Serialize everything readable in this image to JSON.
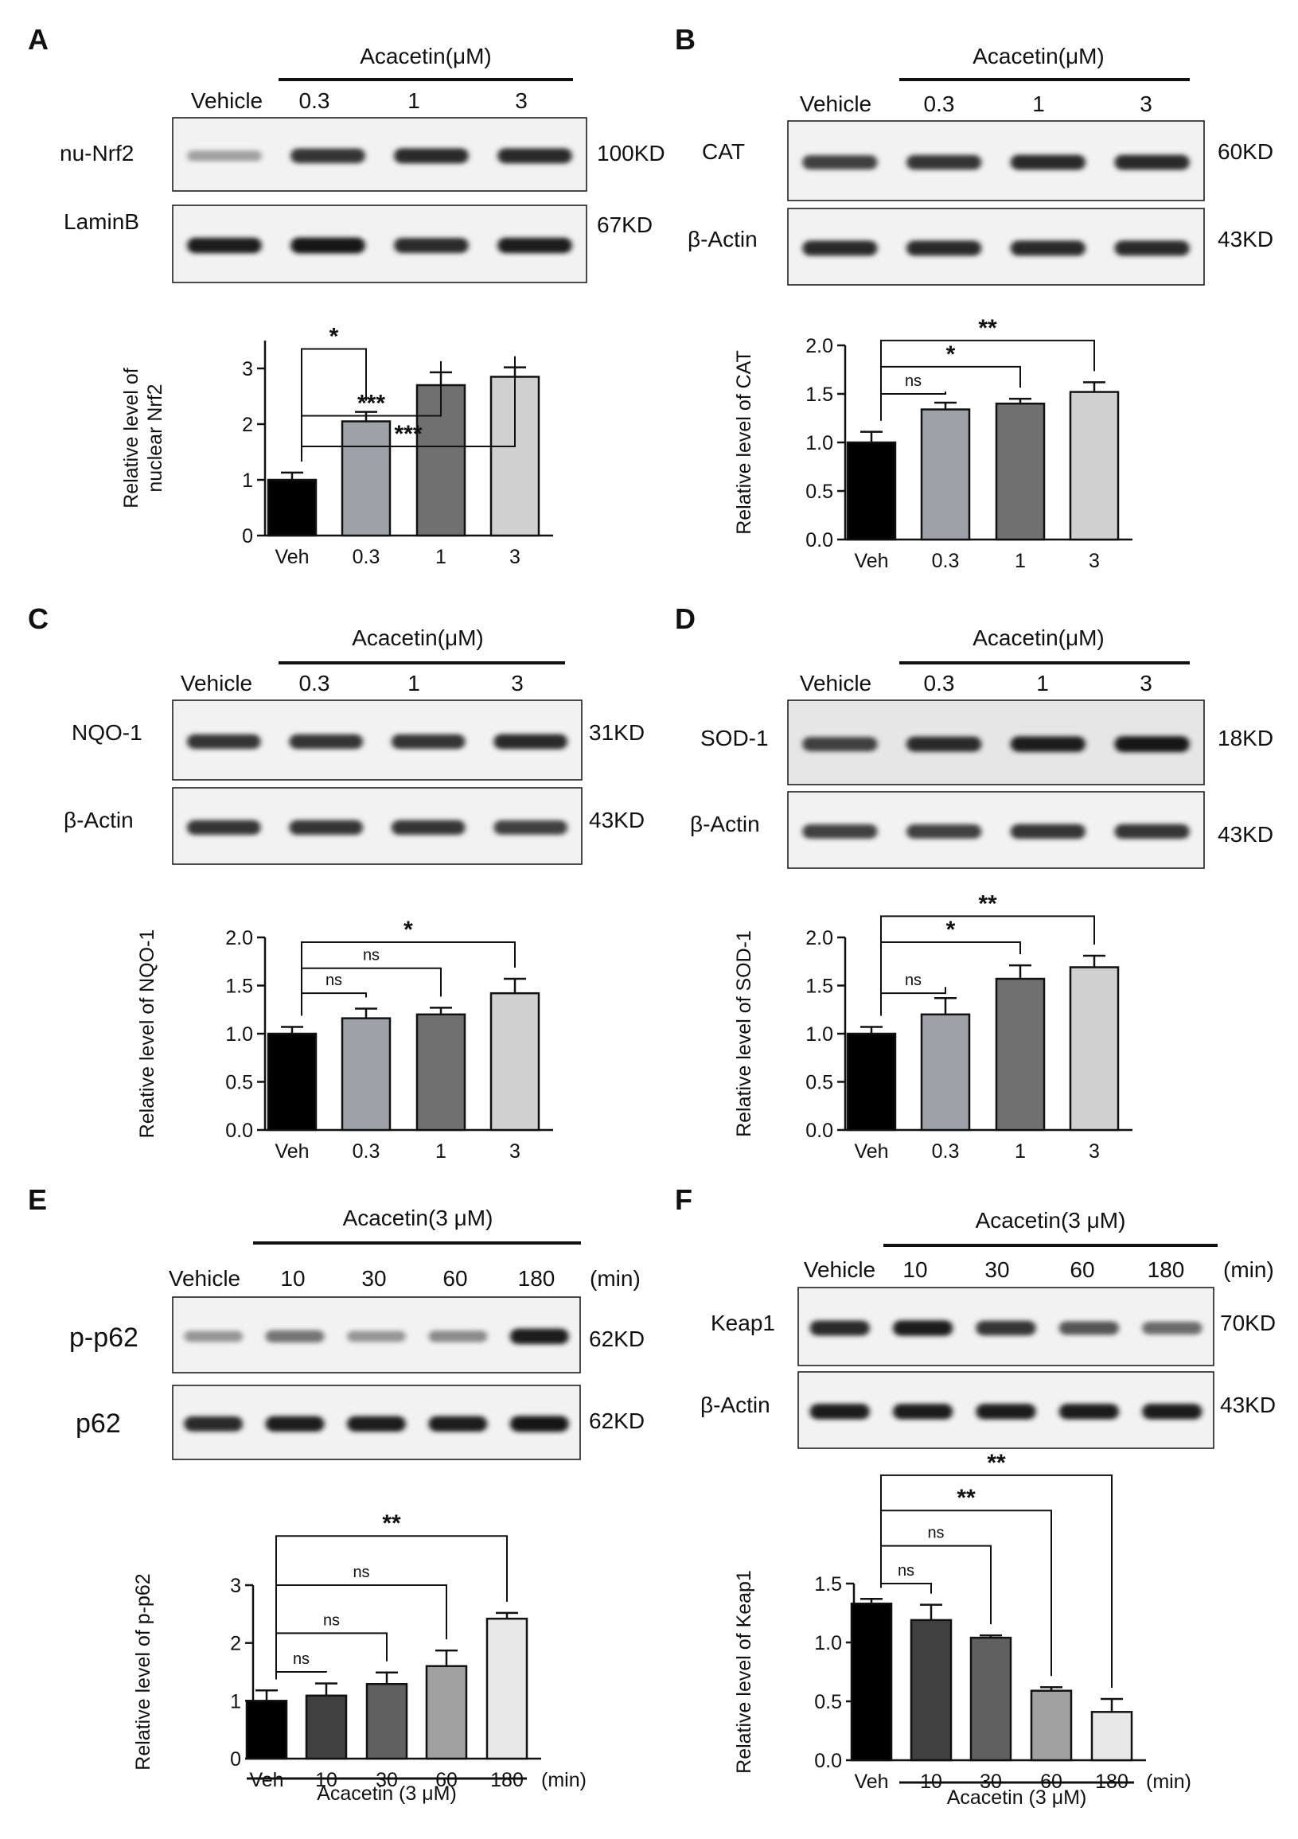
{
  "panels": [
    {
      "letter": "A",
      "blot": {
        "treatment": "Acacetin(μM)",
        "lanes": [
          "Vehicle",
          "0.3",
          "1",
          "3"
        ],
        "rows": [
          {
            "protein": "nu-Nrf2",
            "kd": "100KD",
            "intensity": [
              0.35,
              0.85,
              0.9,
              0.9
            ]
          },
          {
            "protein": "LaminB",
            "kd": "67KD",
            "intensity": [
              0.95,
              1.0,
              0.9,
              0.95
            ]
          }
        ]
      },
      "chart_data": {
        "type": "bar",
        "categories": [
          "Veh",
          "0.3",
          "1",
          "3"
        ],
        "values": [
          1.0,
          2.05,
          2.7,
          2.85
        ],
        "errors": [
          0.13,
          0.17,
          0.23,
          0.17
        ],
        "bar_colors": [
          "#000000",
          "#a0a0a8",
          "#707070",
          "#d0d0d0"
        ],
        "ylabel_lines": [
          "Relative level of",
          "nuclear Nrf2"
        ],
        "ylim": [
          0,
          3.5
        ],
        "yticks": [
          "0",
          "1",
          "2",
          "3"
        ],
        "tick_values": [
          0,
          1,
          2,
          3
        ],
        "significance": [
          {
            "to": 1,
            "label": "*",
            "level": 3.35
          },
          {
            "to": 2,
            "label": "***",
            "level": 2.15
          },
          {
            "to": 3,
            "label": "***",
            "level": 1.6
          }
        ]
      }
    },
    {
      "letter": "B",
      "blot": {
        "treatment": "Acacetin(μM)",
        "lanes": [
          "Vehicle",
          "0.3",
          "1",
          "3"
        ],
        "rows": [
          {
            "protein": "CAT",
            "kd": "60KD",
            "intensity": [
              0.8,
              0.85,
              0.9,
              0.9
            ]
          },
          {
            "protein": "β-Actin",
            "kd": "43KD",
            "intensity": [
              0.9,
              0.9,
              0.9,
              0.9
            ]
          }
        ]
      },
      "chart_data": {
        "type": "bar",
        "categories": [
          "Veh",
          "0.3",
          "1",
          "3"
        ],
        "values": [
          1.0,
          1.34,
          1.4,
          1.52
        ],
        "errors": [
          0.11,
          0.07,
          0.05,
          0.1
        ],
        "bar_colors": [
          "#000000",
          "#a0a0a8",
          "#707070",
          "#d0d0d0"
        ],
        "ylabel_lines": [
          "Relative level of CAT"
        ],
        "ylim": [
          0,
          2.0
        ],
        "yticks": [
          "0.0",
          "0.5",
          "1.0",
          "1.5",
          "2.0"
        ],
        "tick_values": [
          0,
          0.5,
          1.0,
          1.5,
          2.0
        ],
        "significance": [
          {
            "to": 1,
            "label": "ns",
            "level": 1.5
          },
          {
            "to": 2,
            "label": "*",
            "level": 1.78
          },
          {
            "to": 3,
            "label": "**",
            "level": 2.05
          }
        ]
      }
    },
    {
      "letter": "C",
      "blot": {
        "treatment": "Acacetin(μM)",
        "lanes": [
          "Vehicle",
          "0.3",
          "1",
          "3"
        ],
        "rows": [
          {
            "protein": "NQO-1",
            "kd": "31KD",
            "intensity": [
              0.85,
              0.85,
              0.85,
              0.9
            ]
          },
          {
            "protein": "β-Actin",
            "kd": "43KD",
            "intensity": [
              0.85,
              0.85,
              0.85,
              0.8
            ]
          }
        ]
      },
      "chart_data": {
        "type": "bar",
        "categories": [
          "Veh",
          "0.3",
          "1",
          "3"
        ],
        "values": [
          1.0,
          1.16,
          1.2,
          1.42
        ],
        "errors": [
          0.07,
          0.1,
          0.07,
          0.15
        ],
        "bar_colors": [
          "#000000",
          "#a0a0a8",
          "#707070",
          "#d0d0d0"
        ],
        "ylabel_lines": [
          "Relative level of NQO-1"
        ],
        "ylim": [
          0,
          2.0
        ],
        "yticks": [
          "0.0",
          "0.5",
          "1.0",
          "1.5",
          "2.0"
        ],
        "tick_values": [
          0,
          0.5,
          1.0,
          1.5,
          2.0
        ],
        "significance": [
          {
            "to": 1,
            "label": "ns",
            "level": 1.42
          },
          {
            "to": 2,
            "label": "ns",
            "level": 1.68
          },
          {
            "to": 3,
            "label": "*",
            "level": 1.95
          }
        ]
      }
    },
    {
      "letter": "D",
      "blot": {
        "treatment": "Acacetin(μM)",
        "lanes": [
          "Vehicle",
          "0.3",
          "1",
          "3"
        ],
        "rows": [
          {
            "protein": "SOD-1",
            "kd": "18KD",
            "intensity": [
              0.8,
              0.9,
              0.95,
              1.0
            ]
          },
          {
            "protein": "β-Actin",
            "kd": "43KD",
            "intensity": [
              0.8,
              0.8,
              0.85,
              0.85
            ]
          }
        ]
      },
      "chart_data": {
        "type": "bar",
        "categories": [
          "Veh",
          "0.3",
          "1",
          "3"
        ],
        "values": [
          1.0,
          1.2,
          1.57,
          1.69
        ],
        "errors": [
          0.07,
          0.17,
          0.14,
          0.12
        ],
        "bar_colors": [
          "#000000",
          "#a0a0a8",
          "#707070",
          "#d0d0d0"
        ],
        "ylabel_lines": [
          "Relative level of SOD-1"
        ],
        "ylim": [
          0,
          2.0
        ],
        "yticks": [
          "0.0",
          "0.5",
          "1.0",
          "1.5",
          "2.0"
        ],
        "tick_values": [
          0,
          0.5,
          1.0,
          1.5,
          2.0
        ],
        "significance": [
          {
            "to": 1,
            "label": "ns",
            "level": 1.42
          },
          {
            "to": 2,
            "label": "*",
            "level": 1.95
          },
          {
            "to": 3,
            "label": "**",
            "level": 2.22
          }
        ]
      }
    },
    {
      "letter": "E",
      "blot": {
        "treatment": "Acacetin(3 μM)",
        "lanes": [
          "Vehicle",
          "10",
          "30",
          "60",
          "180"
        ],
        "unit": "(min)",
        "rows": [
          {
            "protein": "p-p62",
            "kd": "62KD",
            "intensity": [
              0.4,
              0.55,
              0.4,
              0.45,
              0.95
            ]
          },
          {
            "protein": "p62",
            "kd": "62KD",
            "intensity": [
              0.9,
              0.95,
              0.95,
              0.95,
              1.0
            ]
          }
        ]
      },
      "chart_data": {
        "type": "bar",
        "categories": [
          "Veh",
          "10",
          "30",
          "60",
          "180"
        ],
        "values": [
          1.0,
          1.09,
          1.29,
          1.6,
          2.42
        ],
        "errors": [
          0.18,
          0.21,
          0.2,
          0.27,
          0.1
        ],
        "bar_colors": [
          "#000000",
          "#404040",
          "#606060",
          "#a0a0a0",
          "#e8e8e8"
        ],
        "ylabel_lines": [
          "Relative level of  p-p62"
        ],
        "ylim": [
          0,
          3.0
        ],
        "yticks": [
          "0",
          "1",
          "2",
          "3"
        ],
        "tick_values": [
          0,
          1,
          2,
          3
        ],
        "xunit": "(min)",
        "group_label": "Acacetin (3 μM)",
        "significance": [
          {
            "to": 1,
            "label": "ns",
            "level": 1.5
          },
          {
            "to": 2,
            "label": "ns",
            "level": 2.17
          },
          {
            "to": 3,
            "label": "ns",
            "level": 3.0
          },
          {
            "to": 4,
            "label": "**",
            "level": 3.85
          }
        ]
      }
    },
    {
      "letter": "F",
      "blot": {
        "treatment": "Acacetin(3 μM)",
        "lanes": [
          "Vehicle",
          "10",
          "30",
          "60",
          "180"
        ],
        "unit": "(min)",
        "rows": [
          {
            "protein": "Keap1",
            "kd": "70KD",
            "intensity": [
              0.9,
              0.95,
              0.85,
              0.7,
              0.6
            ]
          },
          {
            "protein": "β-Actin",
            "kd": "43KD",
            "intensity": [
              0.95,
              0.95,
              0.95,
              0.95,
              0.95
            ]
          }
        ]
      },
      "chart_data": {
        "type": "bar",
        "categories": [
          "Veh",
          "10",
          "30",
          "60",
          "180"
        ],
        "values": [
          1.33,
          1.19,
          1.04,
          0.59,
          0.41
        ],
        "errors": [
          0.04,
          0.13,
          0.02,
          0.03,
          0.11
        ],
        "bar_colors": [
          "#000000",
          "#404040",
          "#606060",
          "#a0a0a0",
          "#e8e8e8"
        ],
        "ylabel_lines": [
          "Relative level of  Keap1"
        ],
        "ylim": [
          0,
          1.5
        ],
        "yticks": [
          "0.0",
          "0.5",
          "1.0",
          "1.5"
        ],
        "tick_values": [
          0,
          0.5,
          1.0,
          1.5
        ],
        "xunit": "(min)",
        "group_label": "Acacetin (3 μM)",
        "significance": [
          {
            "to": 1,
            "label": "ns",
            "level": 1.5
          },
          {
            "to": 2,
            "label": "ns",
            "level": 1.82
          },
          {
            "to": 3,
            "label": "**",
            "level": 2.12
          },
          {
            "to": 4,
            "label": "**",
            "level": 2.42
          }
        ]
      }
    }
  ]
}
